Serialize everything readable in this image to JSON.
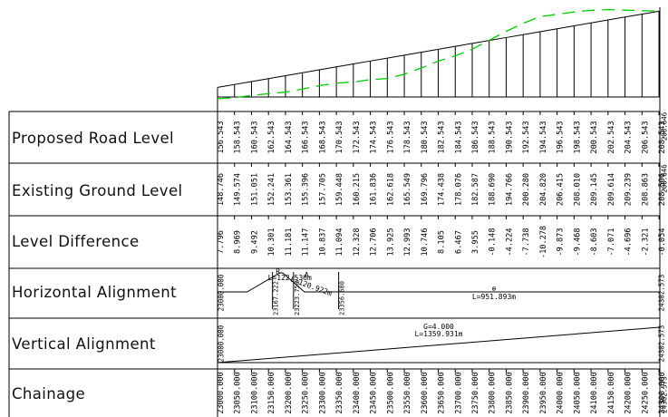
{
  "rows": {
    "proposed": "Proposed Road Level",
    "existing": "Existing Ground Level",
    "difference": "Level Difference",
    "horizontal": "Horizontal Alignment",
    "vertical": "Vertical Alignment",
    "chainage": "Chainage"
  },
  "chainages": [
    "23000.000",
    "23050.000",
    "23100.000",
    "23150.000",
    "23200.000",
    "23250.000",
    "23300.000",
    "23350.000",
    "23400.000",
    "23450.000",
    "23500.000",
    "23550.000",
    "23600.000",
    "23650.000",
    "23700.000",
    "23750.000",
    "23800.000",
    "23850.000",
    "23900.000",
    "23950.000",
    "24000.000",
    "24050.000",
    "24100.000",
    "24150.000",
    "24200.000",
    "24250.000",
    "24300.000"
  ],
  "proposed_levels": [
    "156.543",
    "158.543",
    "160.543",
    "162.543",
    "164.543",
    "166.543",
    "168.543",
    "170.543",
    "172.543",
    "174.543",
    "176.543",
    "178.543",
    "180.543",
    "182.543",
    "184.543",
    "186.543",
    "188.543",
    "190.543",
    "192.543",
    "194.543",
    "196.543",
    "198.543",
    "200.543",
    "202.543",
    "204.543",
    "206.543",
    "208.543"
  ],
  "existing_levels": [
    "148.746",
    "149.574",
    "151.051",
    "152.241",
    "153.361",
    "155.396",
    "157.705",
    "159.448",
    "160.215",
    "161.836",
    "162.618",
    "165.549",
    "169.796",
    "174.438",
    "178.076",
    "182.587",
    "188.690",
    "194.766",
    "200.280",
    "204.820",
    "206.415",
    "208.010",
    "209.145",
    "209.614",
    "209.239",
    "208.863",
    "208.596"
  ],
  "level_differences": [
    "7.796",
    "8.969",
    "9.492",
    "10.301",
    "11.181",
    "11.147",
    "10.837",
    "11.094",
    "12.328",
    "12.706",
    "13.925",
    "12.993",
    "10.746",
    "8.105",
    "6.467",
    "3.955",
    "-0.148",
    "-4.224",
    "-7.738",
    "-10.278",
    "-9.873",
    "-9.468",
    "-8.603",
    "-7.071",
    "-4.696",
    "-2.321",
    "-0.054"
  ],
  "end_station": {
    "chainage": "24302.573",
    "proposed": "208.646",
    "existing": "208.646"
  },
  "horizontal_alignment": {
    "start": "23000.000",
    "tangent_points": [
      "23167.222",
      "23223.758",
      "23356.680"
    ],
    "curve_radius_label": "R",
    "curve_length": "L=122.536m",
    "spiral_label": "A",
    "spiral_length": "L=120.922m",
    "straight_symbol": "⊕",
    "straight_length": "L=951.893m",
    "end": "24302.573"
  },
  "vertical_alignment": {
    "start": "23000.000",
    "grade": "G=4.000",
    "length": "L=1359.931m",
    "end": "24302.573"
  },
  "colors": {
    "line": "#000000",
    "ground": "#00cc00",
    "background": "#ffffff"
  }
}
